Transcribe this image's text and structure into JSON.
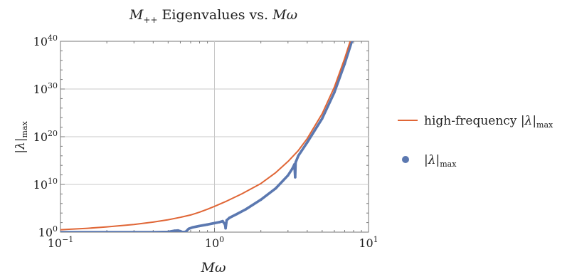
{
  "chart_data": {
    "type": "line",
    "title": {
      "main": "M",
      "sub": "++",
      "rest": " Eigenvalues vs. ",
      "italic_end": "Mω"
    },
    "xlabel": "Mω",
    "ylabel": {
      "main": "|λ|",
      "sub": "max"
    },
    "x_scale": "log",
    "y_scale": "log",
    "xlim": [
      0.1,
      10
    ],
    "ylim": [
      1,
      1e+40
    ],
    "x_ticks": [
      {
        "value": 0.1,
        "base": "10",
        "exp": "−1"
      },
      {
        "value": 1,
        "base": "10",
        "exp": "0"
      },
      {
        "value": 10,
        "base": "10",
        "exp": "1"
      }
    ],
    "y_ticks": [
      {
        "value": 1,
        "base": "10",
        "exp": "0"
      },
      {
        "value": 10000000000.0,
        "base": "10",
        "exp": "10"
      },
      {
        "value": 1e+20,
        "base": "10",
        "exp": "20"
      },
      {
        "value": 1e+30,
        "base": "10",
        "exp": "30"
      },
      {
        "value": 1e+40,
        "base": "10",
        "exp": "40"
      }
    ],
    "grid": true,
    "legend_position": "right",
    "series": [
      {
        "name": {
          "prefix": "high-frequency ",
          "main": "|λ|",
          "sub": "max"
        },
        "style": "line",
        "color": "#e06636",
        "log10_y_points": [
          [
            0.1,
            0.5
          ],
          [
            0.15,
            0.8
          ],
          [
            0.2,
            1.1
          ],
          [
            0.3,
            1.6
          ],
          [
            0.4,
            2.1
          ],
          [
            0.5,
            2.6
          ],
          [
            0.6,
            3.1
          ],
          [
            0.7,
            3.6
          ],
          [
            0.8,
            4.2
          ],
          [
            0.9,
            4.8
          ],
          [
            1.0,
            5.4
          ],
          [
            1.2,
            6.5
          ],
          [
            1.5,
            8.0
          ],
          [
            2.0,
            10.2
          ],
          [
            2.5,
            12.5
          ],
          [
            3.0,
            14.8
          ],
          [
            3.5,
            17.1
          ],
          [
            4.0,
            19.6
          ],
          [
            5.0,
            24.8
          ],
          [
            6.0,
            30.4
          ],
          [
            7.0,
            36.4
          ],
          [
            7.6,
            40
          ]
        ]
      },
      {
        "name": {
          "prefix": "",
          "main": "|λ|",
          "sub": "max"
        },
        "style": "points",
        "color": "#5b78b0",
        "log10_y_points": [
          [
            0.1,
            0
          ],
          [
            0.2,
            0
          ],
          [
            0.3,
            0
          ],
          [
            0.4,
            0
          ],
          [
            0.5,
            0.05
          ],
          [
            0.55,
            0.3
          ],
          [
            0.58,
            0.35
          ],
          [
            0.6,
            0.2
          ],
          [
            0.62,
            0.02
          ],
          [
            0.65,
            0.08
          ],
          [
            0.68,
            0.7
          ],
          [
            0.72,
            1.0
          ],
          [
            0.8,
            1.3
          ],
          [
            0.9,
            1.6
          ],
          [
            1.0,
            1.9
          ],
          [
            1.08,
            2.1
          ],
          [
            1.13,
            2.3
          ],
          [
            1.17,
            1.6
          ],
          [
            1.18,
            0.8
          ],
          [
            1.2,
            2.5
          ],
          [
            1.25,
            3.0
          ],
          [
            1.4,
            3.8
          ],
          [
            1.6,
            4.8
          ],
          [
            2.0,
            6.8
          ],
          [
            2.5,
            9.2
          ],
          [
            3.0,
            11.9
          ],
          [
            3.2,
            13.3
          ],
          [
            3.3,
            14.2
          ],
          [
            3.34,
            11.5
          ],
          [
            3.36,
            14.6
          ],
          [
            3.5,
            16.0
          ],
          [
            4.0,
            18.8
          ],
          [
            5.0,
            23.8
          ],
          [
            6.0,
            29.3
          ],
          [
            7.0,
            35.3
          ],
          [
            7.8,
            40
          ]
        ]
      }
    ]
  }
}
